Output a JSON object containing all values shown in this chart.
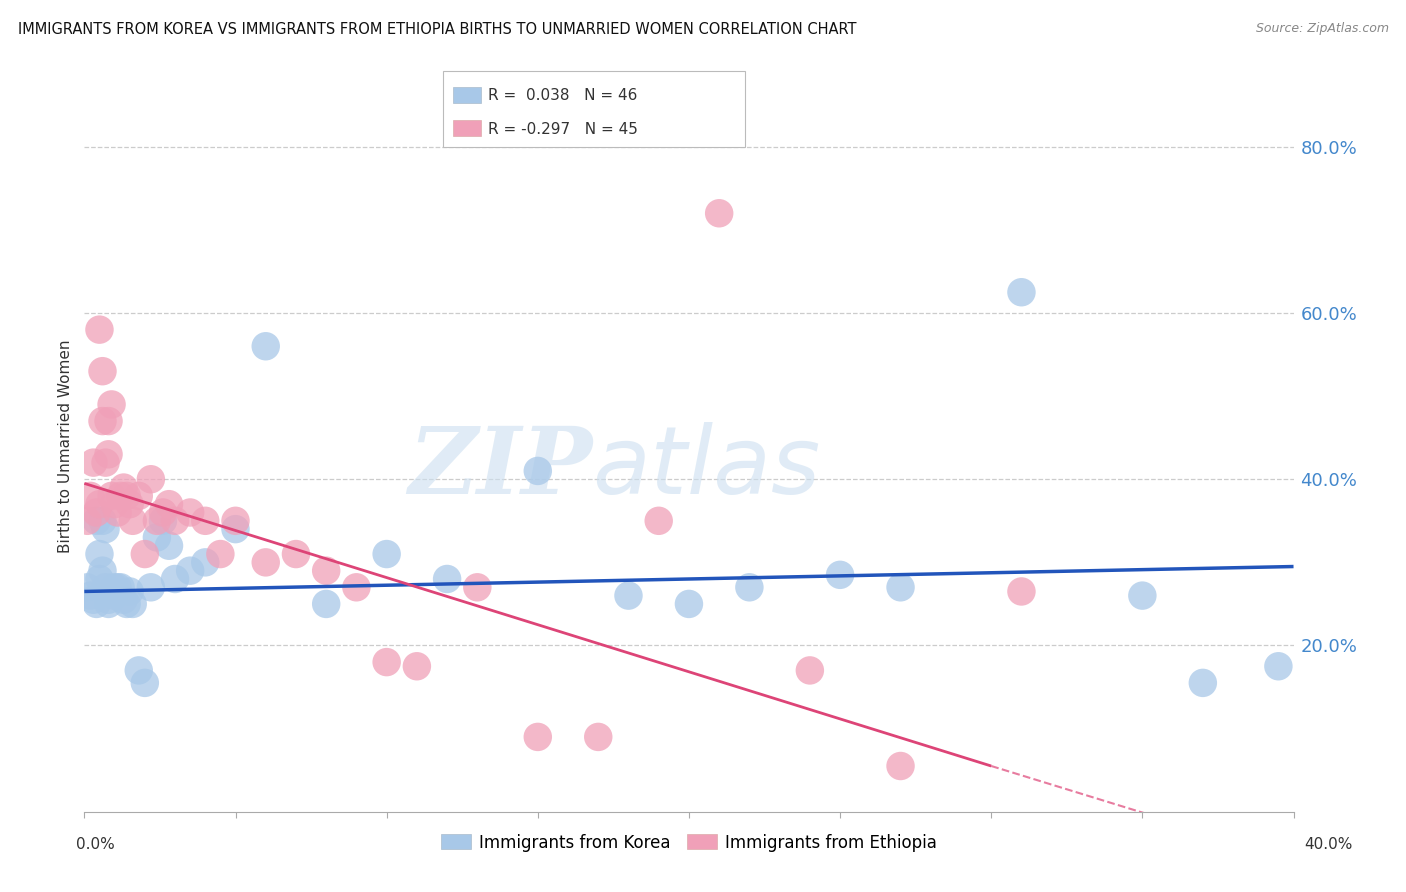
{
  "title": "IMMIGRANTS FROM KOREA VS IMMIGRANTS FROM ETHIOPIA BIRTHS TO UNMARRIED WOMEN CORRELATION CHART",
  "source": "Source: ZipAtlas.com",
  "ylabel": "Births to Unmarried Women",
  "ytick_values": [
    0.8,
    0.6,
    0.4,
    0.2
  ],
  "xlim": [
    0.0,
    0.4
  ],
  "ylim": [
    0.0,
    0.88
  ],
  "korea_color": "#a8c8e8",
  "ethiopia_color": "#f0a0b8",
  "korea_line_color": "#2255bb",
  "ethiopia_line_color": "#dd4477",
  "korea_x": [
    0.001,
    0.002,
    0.003,
    0.004,
    0.004,
    0.005,
    0.005,
    0.006,
    0.006,
    0.007,
    0.007,
    0.008,
    0.008,
    0.009,
    0.01,
    0.01,
    0.011,
    0.012,
    0.013,
    0.014,
    0.015,
    0.016,
    0.018,
    0.02,
    0.022,
    0.024,
    0.026,
    0.028,
    0.03,
    0.035,
    0.04,
    0.05,
    0.06,
    0.08,
    0.1,
    0.12,
    0.15,
    0.18,
    0.2,
    0.22,
    0.25,
    0.27,
    0.31,
    0.35,
    0.37,
    0.395
  ],
  "korea_y": [
    0.27,
    0.26,
    0.255,
    0.25,
    0.35,
    0.31,
    0.28,
    0.29,
    0.35,
    0.34,
    0.27,
    0.255,
    0.25,
    0.265,
    0.27,
    0.26,
    0.27,
    0.27,
    0.255,
    0.25,
    0.265,
    0.25,
    0.17,
    0.155,
    0.27,
    0.33,
    0.35,
    0.32,
    0.28,
    0.29,
    0.3,
    0.34,
    0.56,
    0.25,
    0.31,
    0.28,
    0.41,
    0.26,
    0.25,
    0.27,
    0.285,
    0.27,
    0.625,
    0.26,
    0.155,
    0.175
  ],
  "ethiopia_x": [
    0.001,
    0.002,
    0.003,
    0.004,
    0.005,
    0.005,
    0.006,
    0.006,
    0.007,
    0.008,
    0.008,
    0.009,
    0.009,
    0.01,
    0.011,
    0.012,
    0.013,
    0.014,
    0.015,
    0.016,
    0.018,
    0.02,
    0.022,
    0.024,
    0.026,
    0.028,
    0.03,
    0.035,
    0.04,
    0.045,
    0.05,
    0.06,
    0.07,
    0.08,
    0.09,
    0.1,
    0.11,
    0.13,
    0.15,
    0.17,
    0.19,
    0.21,
    0.24,
    0.27,
    0.31
  ],
  "ethiopia_y": [
    0.35,
    0.38,
    0.42,
    0.36,
    0.37,
    0.58,
    0.47,
    0.53,
    0.42,
    0.43,
    0.47,
    0.49,
    0.38,
    0.37,
    0.36,
    0.38,
    0.39,
    0.38,
    0.37,
    0.35,
    0.38,
    0.31,
    0.4,
    0.35,
    0.36,
    0.37,
    0.35,
    0.36,
    0.35,
    0.31,
    0.35,
    0.3,
    0.31,
    0.29,
    0.27,
    0.18,
    0.175,
    0.27,
    0.09,
    0.09,
    0.35,
    0.72,
    0.17,
    0.055,
    0.265
  ],
  "korea_trend_x": [
    0.0,
    0.4
  ],
  "korea_trend_y": [
    0.265,
    0.295
  ],
  "ethiopia_trend_x": [
    0.0,
    0.3
  ],
  "ethiopia_trend_y": [
    0.395,
    0.055
  ]
}
